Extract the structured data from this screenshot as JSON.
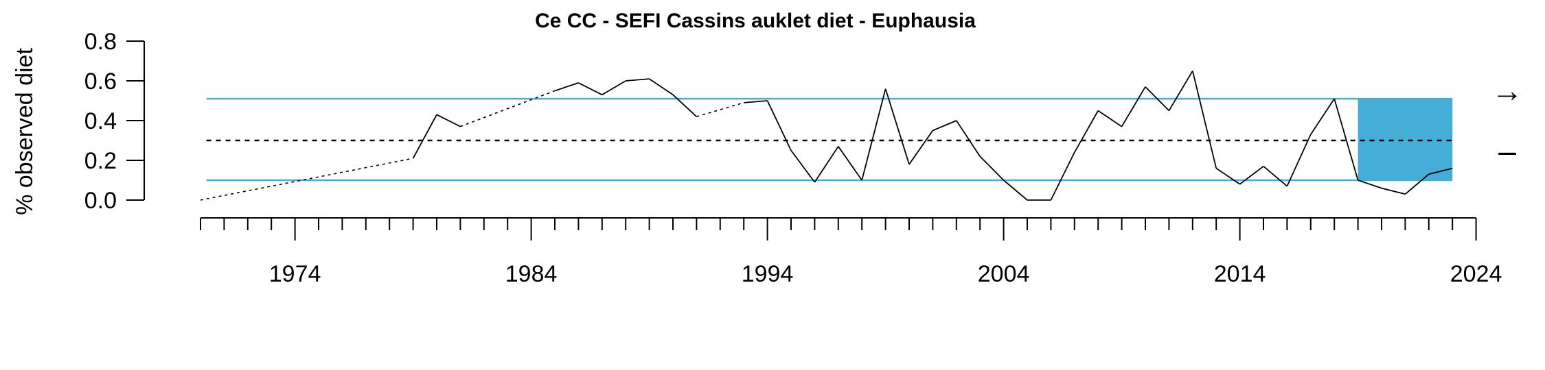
{
  "chart_data": {
    "type": "line",
    "title": "Ce CC - SEFI Cassins auklet diet - Euphausia",
    "ylabel": "% observed diet",
    "xlabel": "",
    "xlim": [
      1970,
      2024
    ],
    "ylim": [
      0,
      0.8
    ],
    "yticks": [
      0.0,
      0.2,
      0.4,
      0.6,
      0.8
    ],
    "ytick_labels": [
      "0.0",
      "0.2",
      "0.4",
      "0.6",
      "0.8"
    ],
    "xticks_major": [
      1974,
      1984,
      1994,
      2004,
      2014,
      2024
    ],
    "xtick_labels": [
      "1974",
      "1984",
      "1994",
      "2004",
      "2014",
      "2024"
    ],
    "xtick_minor_step": 1,
    "mean": 0.3,
    "sd_upper": 0.51,
    "sd_lower": 0.1,
    "recent_window": [
      2019,
      2023
    ],
    "trend_symbol": "→",
    "mean_symbol": "–",
    "colors": {
      "band": "#45aed6",
      "line": "#000000",
      "sd": "#45aed6"
    },
    "series": [
      {
        "x": [
          1970,
          1971,
          1972,
          1973,
          1974,
          1975,
          1976,
          1977,
          1978,
          1979,
          1980,
          1981,
          1982,
          1983,
          1984,
          1985,
          1986,
          1987,
          1988,
          1989,
          1990,
          1991,
          1992,
          1993,
          1994,
          1995,
          1996,
          1997,
          1998,
          1999,
          2000,
          2001,
          2002,
          2003,
          2004,
          2005,
          2006,
          2007,
          2008,
          2009,
          2010,
          2011,
          2012,
          2013,
          2014,
          2015,
          2016,
          2017,
          2018,
          2019,
          2020,
          2021,
          2022,
          2023
        ],
        "y": [
          0.0,
          null,
          null,
          null,
          null,
          null,
          null,
          null,
          null,
          0.21,
          0.43,
          0.37,
          null,
          null,
          null,
          0.55,
          0.59,
          0.53,
          0.6,
          0.61,
          0.53,
          0.42,
          null,
          0.49,
          0.5,
          0.25,
          0.09,
          0.27,
          0.1,
          0.56,
          0.18,
          0.35,
          0.4,
          0.22,
          0.1,
          0.0,
          0.0,
          0.24,
          0.45,
          0.37,
          0.57,
          0.45,
          0.65,
          0.16,
          0.08,
          0.17,
          0.07,
          0.33,
          0.51,
          0.1,
          0.06,
          0.03,
          0.13,
          0.16
        ]
      }
    ]
  }
}
